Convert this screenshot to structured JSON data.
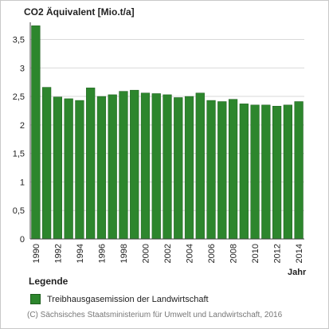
{
  "chart_data": {
    "type": "bar",
    "title": "CO2 Äquivalent [Mio.t/a]",
    "xlabel": "Jahr",
    "ylabel": "",
    "ylim": [
      0,
      3.8
    ],
    "yticks": [
      "0",
      "0,5",
      "1",
      "1,5",
      "2",
      "2,5",
      "3",
      "3,5"
    ],
    "ytick_values": [
      0,
      0.5,
      1,
      1.5,
      2,
      2.5,
      3,
      3.5
    ],
    "categories": [
      "1990",
      "1991",
      "1992",
      "1993",
      "1994",
      "1995",
      "1996",
      "1997",
      "1998",
      "1999",
      "2000",
      "2001",
      "2002",
      "2003",
      "2004",
      "2005",
      "2006",
      "2007",
      "2008",
      "2009",
      "2010",
      "2011",
      "2012",
      "2013",
      "2014"
    ],
    "xtick_labels": [
      "1990",
      "",
      "1992",
      "",
      "1994",
      "",
      "1996",
      "",
      "1998",
      "",
      "2000",
      "",
      "2002",
      "",
      "2004",
      "",
      "2006",
      "",
      "2008",
      "",
      "2010",
      "",
      "2012",
      "",
      "2014"
    ],
    "series": [
      {
        "name": "Treibhausgasemission der Landwirtschaft",
        "color": "#2d862d",
        "values": [
          3.74,
          2.66,
          2.49,
          2.46,
          2.43,
          2.65,
          2.5,
          2.53,
          2.59,
          2.61,
          2.56,
          2.55,
          2.53,
          2.48,
          2.5,
          2.56,
          2.43,
          2.41,
          2.45,
          2.37,
          2.35,
          2.35,
          2.33,
          2.35,
          2.41
        ]
      }
    ],
    "grid": true,
    "legend_position": "bottom"
  },
  "legend": {
    "heading": "Legende",
    "item_label": "Treibhausgasemission der Landwirtschaft"
  },
  "footer": "(C) Sächsisches Staatsministerium für Umwelt und Landwirtschaft, 2016"
}
